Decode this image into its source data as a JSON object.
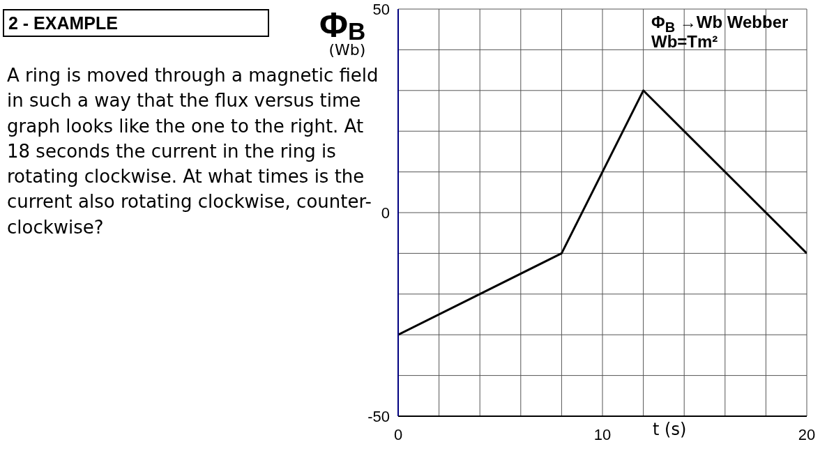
{
  "chart_data": {
    "type": "line",
    "title": "2 - EXAMPLE",
    "xlabel": "t (s)",
    "ylabel": "Φ$_{B}$\n(Wb)",
    "annotations": [
      "A ring is moved through a magnetic field in such a way that the flux versus time graph looks like the one to the right. At 18 seconds the current in the ring is rotating clockwise. At what times is the current also rotating clockwise, counter-clockwise?",
      "Φ$_{B}$ →Wb Webber",
      "Wb=Tm²"
    ],
    "x": [
      0,
      8,
      12,
      20
    ],
    "values": [
      -30,
      -10,
      30,
      -10
    ],
    "color": "#000000",
    "xlim": [
      0,
      20
    ],
    "ylim": [
      -50,
      50
    ],
    "xticks": [
      0,
      {
        "value": 2,
        "label": null
      },
      {
        "value": 4,
        "label": null
      },
      {
        "value": 6,
        "label": null
      },
      {
        "value": 8,
        "label": null
      },
      10,
      {
        "value": 12,
        "label": null
      },
      {
        "value": 14,
        "label": null
      },
      {
        "value": 16,
        "label": null
      },
      {
        "value": 18,
        "label": null
      },
      20
    ],
    "yticks": [
      -50,
      {
        "value": -40,
        "label": null
      },
      {
        "value": -30,
        "label": null
      },
      {
        "value": -20,
        "label": null
      },
      {
        "value": -10,
        "label": null
      },
      0,
      {
        "value": 10,
        "label": null
      },
      {
        "value": 20,
        "label": null
      },
      {
        "value": 30,
        "label": null
      },
      {
        "value": 40,
        "label": null
      },
      50
    ],
    "grid": true
  }
}
